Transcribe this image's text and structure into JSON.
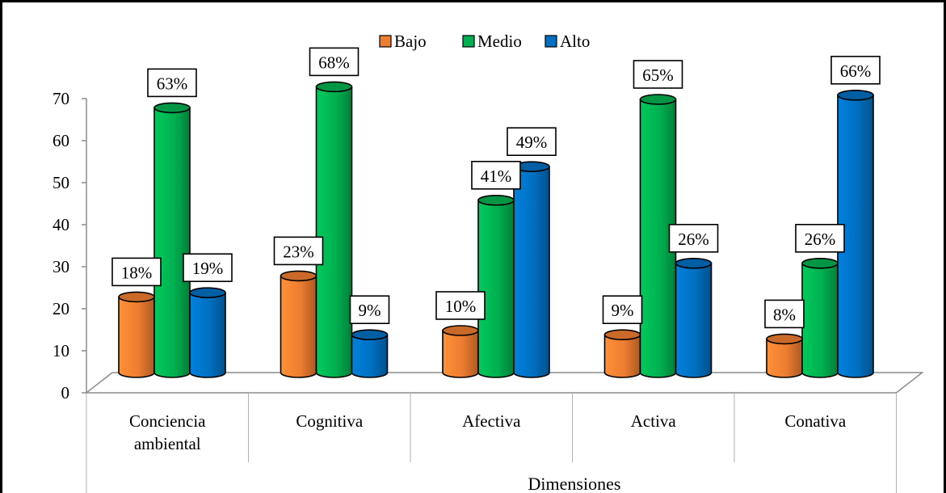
{
  "chart_data": {
    "type": "bar",
    "title": "",
    "xlabel": "Dimensiones",
    "ylabel": "",
    "ylim": [
      0,
      70
    ],
    "yticks": [
      "0",
      "10",
      "20",
      "30",
      "40",
      "50",
      "60",
      "70"
    ],
    "grid": false,
    "legend_position": "top-center",
    "categories": [
      [
        "Conciencia",
        "ambiental"
      ],
      [
        "Cognitiva"
      ],
      [
        "Afectiva"
      ],
      [
        "Activa"
      ],
      [
        "Conativa"
      ]
    ],
    "series": [
      {
        "name": "Bajo",
        "color": "#ED7D31",
        "values": [
          18,
          23,
          10,
          9,
          8
        ],
        "labels": [
          "18%",
          "23%",
          "10%",
          "9%",
          "8%"
        ]
      },
      {
        "name": "Medio",
        "color": "#00B050",
        "values": [
          63,
          68,
          41,
          65,
          26
        ],
        "labels": [
          "63%",
          "68%",
          "41%",
          "65%",
          "26%"
        ]
      },
      {
        "name": "Alto",
        "color": "#0070C0",
        "values": [
          19,
          9,
          49,
          26,
          66
        ],
        "labels": [
          "19%",
          "9%",
          "49%",
          "26%",
          "66%"
        ]
      }
    ]
  }
}
